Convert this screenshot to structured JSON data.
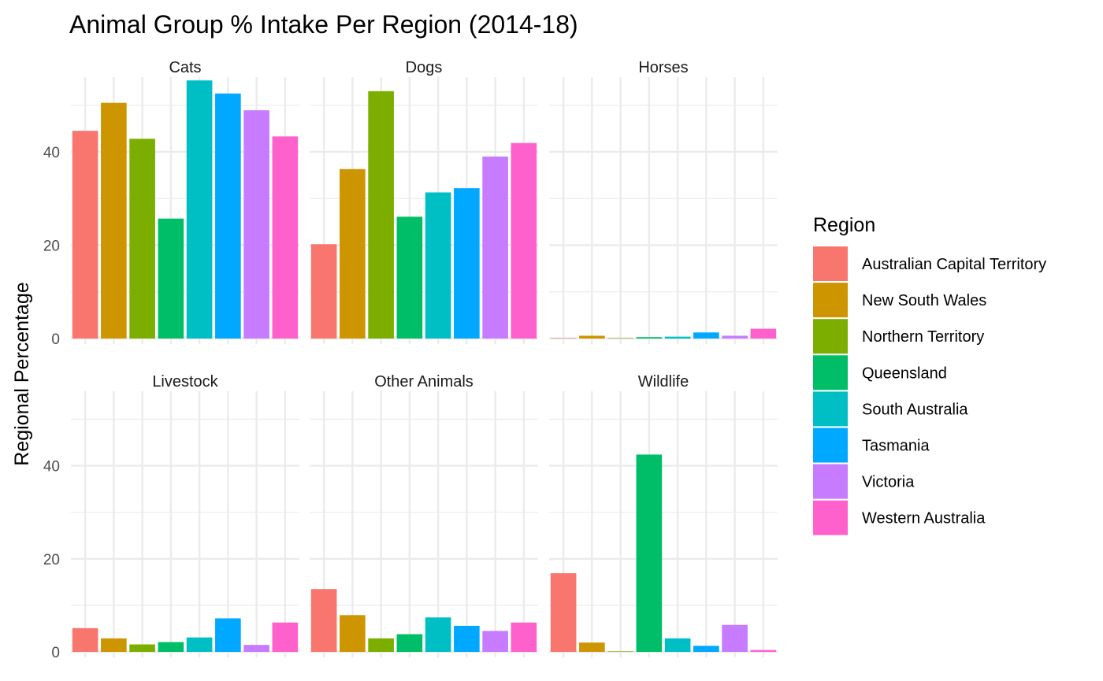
{
  "chart_data": {
    "type": "bar",
    "title": "Animal Group % Intake Per Region (2014-18)",
    "ylabel": "Regional Percentage",
    "xlabel": "",
    "ylim": [
      0,
      56
    ],
    "yticks": [
      0,
      20,
      40
    ],
    "grid": true,
    "legend": {
      "title": "Region",
      "placement": "right",
      "entries": [
        {
          "name": "Australian Capital Territory",
          "color": "#F8766D"
        },
        {
          "name": "New South Wales",
          "color": "#CD9600"
        },
        {
          "name": "Northern Territory",
          "color": "#7CAE00"
        },
        {
          "name": "Queensland",
          "color": "#00BE67"
        },
        {
          "name": "South Australia",
          "color": "#00BFC4"
        },
        {
          "name": "Tasmania",
          "color": "#00A9FF"
        },
        {
          "name": "Victoria",
          "color": "#C77CFF"
        },
        {
          "name": "Western Australia",
          "color": "#FF61CC"
        }
      ]
    },
    "panels": [
      {
        "name": "Cats",
        "values": [
          44.5,
          50.5,
          42.8,
          25.7,
          55.3,
          52.5,
          48.9,
          43.3
        ]
      },
      {
        "name": "Dogs",
        "values": [
          20.2,
          36.3,
          53.0,
          26.1,
          31.3,
          32.2,
          39.0,
          41.9
        ]
      },
      {
        "name": "Horses",
        "values": [
          0.1,
          0.6,
          0.1,
          0.3,
          0.4,
          1.3,
          0.6,
          2.1
        ]
      },
      {
        "name": "Livestock",
        "values": [
          5.1,
          2.9,
          1.6,
          2.1,
          3.1,
          7.2,
          1.5,
          6.3
        ]
      },
      {
        "name": "Other Animals",
        "values": [
          13.5,
          7.9,
          2.9,
          3.8,
          7.4,
          5.6,
          4.5,
          6.3
        ]
      },
      {
        "name": "Wildlife",
        "values": [
          16.9,
          2.0,
          0.1,
          42.4,
          2.9,
          1.3,
          5.8,
          0.4
        ]
      }
    ]
  }
}
